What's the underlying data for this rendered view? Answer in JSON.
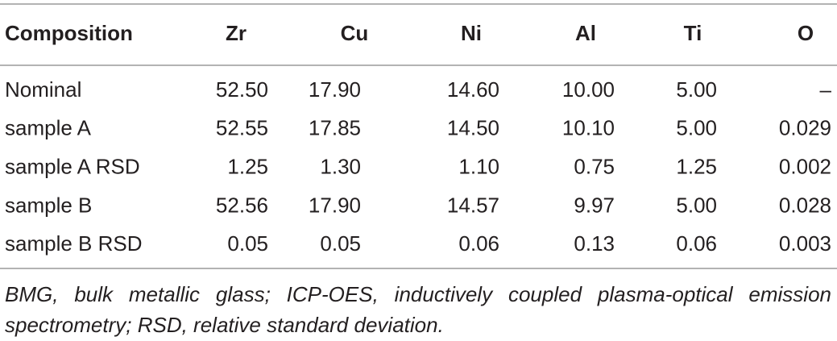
{
  "table": {
    "header": [
      "Composition",
      "Zr",
      "Cu",
      "Ni",
      "Al",
      "Ti",
      "O"
    ],
    "rows": [
      [
        "Nominal",
        "52.50",
        "17.90",
        "14.60",
        "10.00",
        "5.00",
        "–"
      ],
      [
        "sample A",
        "52.55",
        "17.85",
        "14.50",
        "10.10",
        "5.00",
        "0.029"
      ],
      [
        "sample A RSD",
        "1.25",
        "1.30",
        "1.10",
        "0.75",
        "1.25",
        "0.002"
      ],
      [
        "sample B",
        "52.56",
        "17.90",
        "14.57",
        "9.97",
        "5.00",
        "0.028"
      ],
      [
        "sample B RSD",
        "0.05",
        "0.05",
        "0.06",
        "0.13",
        "0.06",
        "0.003"
      ]
    ],
    "footnote": "BMG, bulk metallic glass; ICP-OES, inductively coupled plasma-optical emission spectrometry; RSD, relative standard deviation."
  }
}
